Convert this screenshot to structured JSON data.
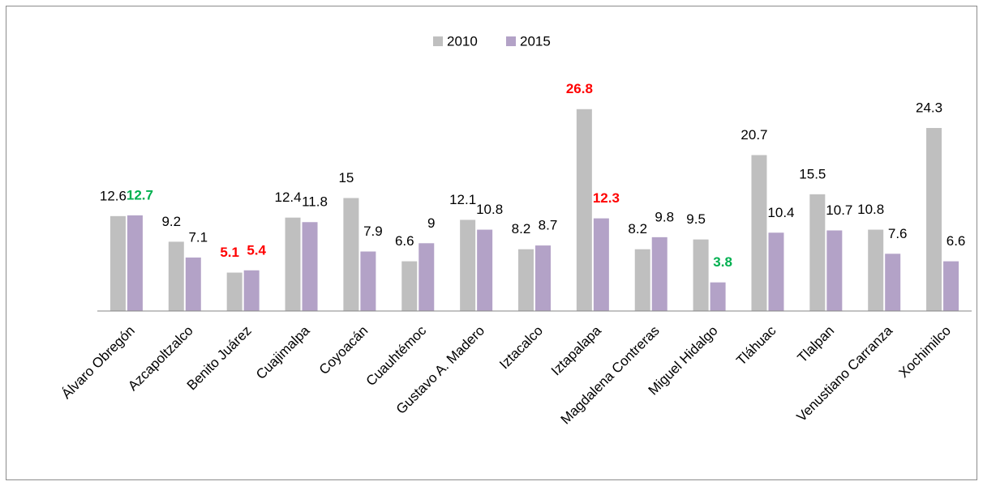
{
  "chart_data": {
    "type": "bar",
    "categories": [
      "Álvaro Obregón",
      "Azcapoltzalco",
      "Benito Juárez",
      "Cuajimalpa",
      "Coyoacán",
      "Cuauhtémoc",
      "Gustavo A. Madero",
      "Iztacalco",
      "Iztapalapa",
      "Magdalena Contreras",
      "Miguel Hidalgo",
      "Tláhuac",
      "Tlalpan",
      "Venustiano Carranza",
      "Xochimilco"
    ],
    "series": [
      {
        "name": "2010",
        "color": "#bfbfbf",
        "values": [
          12.6,
          9.2,
          5.1,
          12.4,
          15,
          6.6,
          12.1,
          8.2,
          26.8,
          8.2,
          9.5,
          20.7,
          15.5,
          10.8,
          24.3
        ],
        "label_colors": [
          "#000000",
          "#000000",
          "#ff0000",
          "#000000",
          "#000000",
          "#000000",
          "#000000",
          "#000000",
          "#ff0000",
          "#000000",
          "#000000",
          "#000000",
          "#000000",
          "#000000",
          "#000000"
        ]
      },
      {
        "name": "2015",
        "color": "#b3a2c7",
        "values": [
          12.7,
          7.1,
          5.4,
          11.8,
          7.9,
          9,
          10.8,
          8.7,
          12.3,
          9.8,
          3.8,
          10.4,
          10.7,
          7.6,
          6.6
        ],
        "label_colors": [
          "#00b050",
          "#000000",
          "#ff0000",
          "#000000",
          "#000000",
          "#000000",
          "#000000",
          "#000000",
          "#ff0000",
          "#000000",
          "#00b050",
          "#000000",
          "#000000",
          "#000000",
          "#000000"
        ]
      }
    ],
    "ylim": [
      0,
      30
    ],
    "grid": false,
    "legend": "top"
  }
}
